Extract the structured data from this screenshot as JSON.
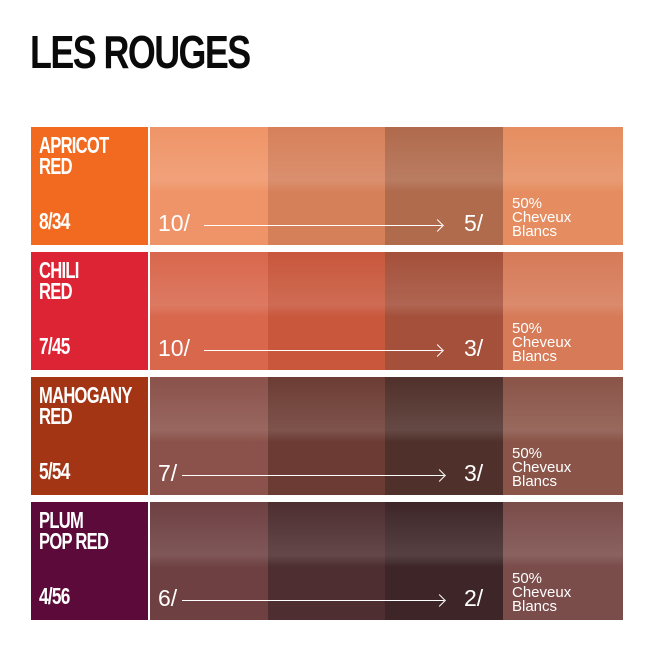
{
  "title": "LES ROUGES",
  "rows": [
    {
      "name_line1": "APRICOT",
      "name_line2": "RED",
      "code": "8/34",
      "from": "10/",
      "to": "5/",
      "note_line1": "50%",
      "note_line2": "Cheveux",
      "note_line3": "Blancs",
      "label_color": "#f26a1f",
      "swatches": [
        "#ef9468",
        "#d6805a",
        "#b06a4c",
        "#e58d60"
      ]
    },
    {
      "name_line1": "CHILI",
      "name_line2": "RED",
      "code": "7/45",
      "from": "10/",
      "to": "3/",
      "note_line1": "50%",
      "note_line2": "Cheveux",
      "note_line3": "Blancs",
      "label_color": "#dc2434",
      "swatches": [
        "#d8674c",
        "#c8573c",
        "#a4503a",
        "#d67a58"
      ]
    },
    {
      "name_line1": "MAHOGANY",
      "name_line2": "RED",
      "code": "5/54",
      "from": "7/",
      "to": "3/",
      "note_line1": "50%",
      "note_line2": "Cheveux",
      "note_line3": "Blancs",
      "label_color": "#a33514",
      "swatches": [
        "#8a524a",
        "#6c3c34",
        "#50302a",
        "#8a5448"
      ]
    },
    {
      "name_line1": "PLUM",
      "name_line2": "POP RED",
      "code": "4/56",
      "from": "6/",
      "to": "2/",
      "note_line1": "50%",
      "note_line2": "Cheveux",
      "note_line3": "Blancs",
      "label_color": "#5c0a3a",
      "swatches": [
        "#6e4042",
        "#4e2e30",
        "#3e2628",
        "#7a4c4a"
      ]
    }
  ]
}
